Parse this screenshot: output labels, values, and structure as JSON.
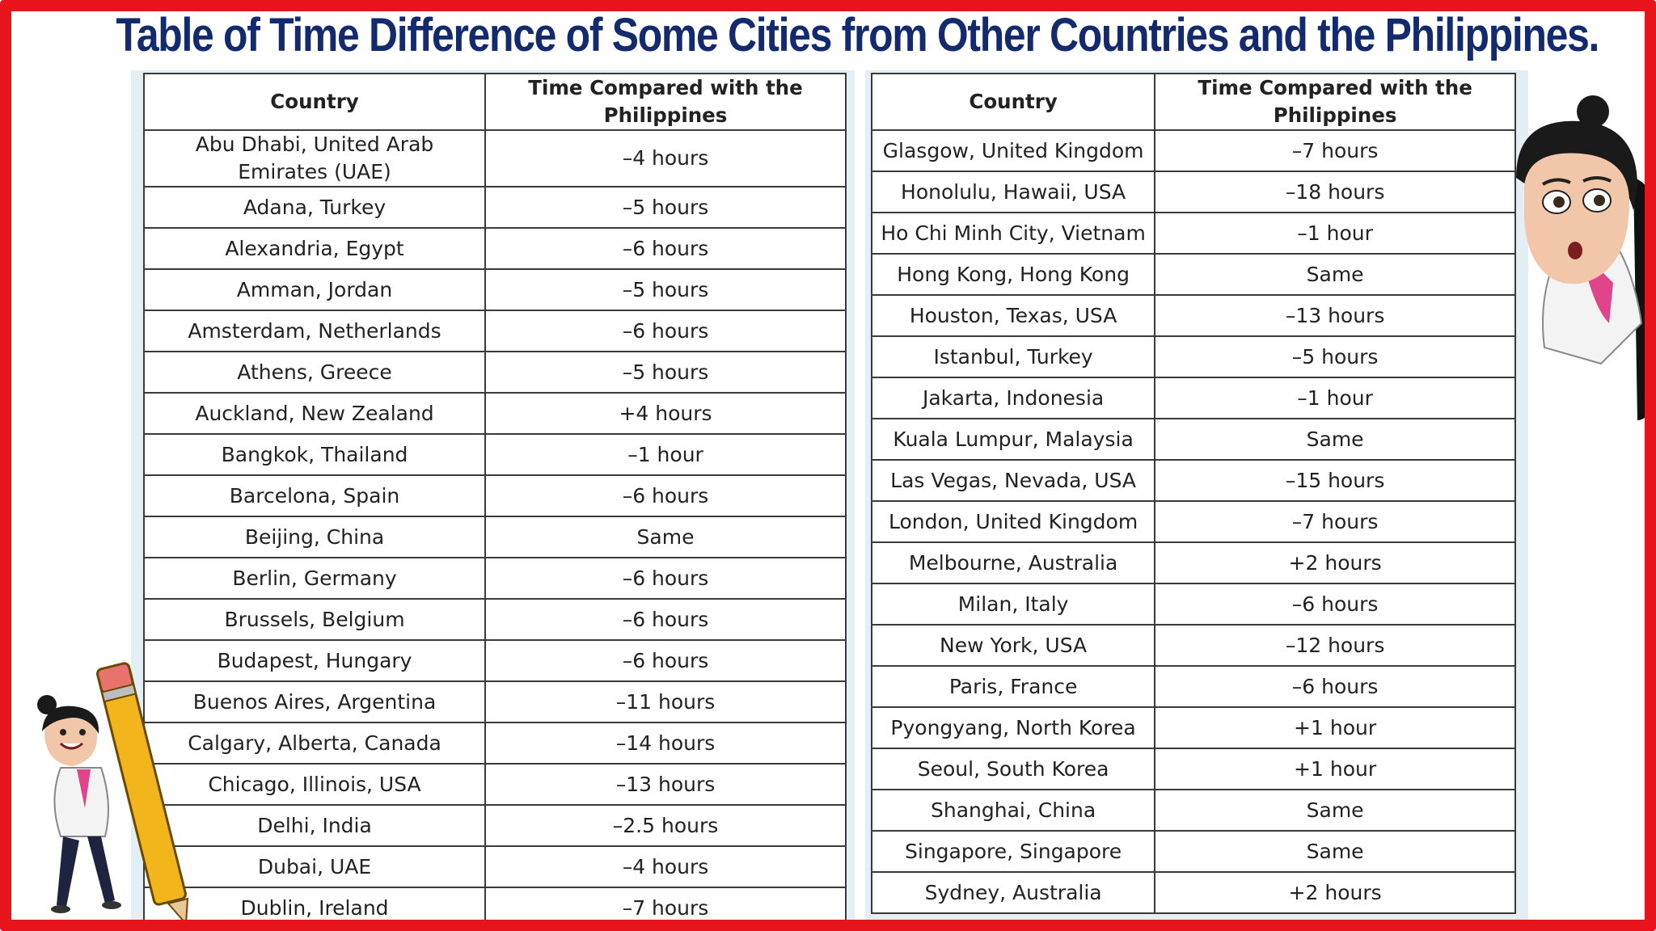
{
  "title": "Table of Time Difference of Some Cities from Other Countries  and the Philippines.",
  "headers": {
    "country": "Country",
    "time": "Time Compared with the Philippines"
  },
  "left_rows": [
    {
      "country": "Abu Dhabi, United Arab Emirates (UAE)",
      "time": "–4 hours"
    },
    {
      "country": "Adana, Turkey",
      "time": "–5 hours"
    },
    {
      "country": "Alexandria, Egypt",
      "time": "–6 hours"
    },
    {
      "country": "Amman, Jordan",
      "time": "–5 hours"
    },
    {
      "country": "Amsterdam, Netherlands",
      "time": "–6 hours"
    },
    {
      "country": "Athens, Greece",
      "time": "–5 hours"
    },
    {
      "country": "Auckland, New Zealand",
      "time": "+4 hours"
    },
    {
      "country": "Bangkok, Thailand",
      "time": "–1 hour"
    },
    {
      "country": "Barcelona, Spain",
      "time": "–6 hours"
    },
    {
      "country": "Beijing, China",
      "time": "Same"
    },
    {
      "country": "Berlin, Germany",
      "time": "–6 hours"
    },
    {
      "country": "Brussels, Belgium",
      "time": "–6 hours"
    },
    {
      "country": "Budapest, Hungary",
      "time": "–6 hours"
    },
    {
      "country": "Buenos Aires, Argentina",
      "time": "–11 hours"
    },
    {
      "country": "Calgary, Alberta, Canada",
      "time": "–14 hours"
    },
    {
      "country": "Chicago, Illinois, USA",
      "time": "–13 hours"
    },
    {
      "country": "Delhi, India",
      "time": "–2.5 hours"
    },
    {
      "country": "Dubai, UAE",
      "time": "–4 hours"
    },
    {
      "country": "Dublin, Ireland",
      "time": "–7 hours"
    }
  ],
  "right_rows": [
    {
      "country": "Glasgow, United Kingdom",
      "time": "–7 hours"
    },
    {
      "country": "Honolulu, Hawaii, USA",
      "time": "–18 hours"
    },
    {
      "country": "Ho Chi Minh City, Vietnam",
      "time": "–1 hour"
    },
    {
      "country": "Hong Kong, Hong Kong",
      "time": "Same"
    },
    {
      "country": "Houston, Texas, USA",
      "time": "–13 hours"
    },
    {
      "country": "Istanbul, Turkey",
      "time": "–5 hours"
    },
    {
      "country": "Jakarta, Indonesia",
      "time": "–1 hour"
    },
    {
      "country": "Kuala Lumpur, Malaysia",
      "time": "Same"
    },
    {
      "country": "Las Vegas, Nevada, USA",
      "time": "–15 hours"
    },
    {
      "country": "London, United Kingdom",
      "time": "–7 hours"
    },
    {
      "country": "Melbourne, Australia",
      "time": "+2 hours"
    },
    {
      "country": "Milan, Italy",
      "time": "–6 hours"
    },
    {
      "country": "New York, USA",
      "time": "–12 hours"
    },
    {
      "country": "Paris, France",
      "time": "–6 hours"
    },
    {
      "country": "Pyongyang, North Korea",
      "time": "+1 hour"
    },
    {
      "country": "Seoul, South Korea",
      "time": "+1 hour"
    },
    {
      "country": "Shanghai, China",
      "time": "Same"
    },
    {
      "country": "Singapore, Singapore",
      "time": "Same"
    },
    {
      "country": "Sydney, Australia",
      "time": "+2 hours"
    }
  ],
  "colors": {
    "frame": "#e8141c",
    "title": "#142a6e",
    "panel": "#e4eef5",
    "pencil": "#f2b51c"
  },
  "icons": {
    "right_figure": "surprised-girl-peeking-icon",
    "left_figure": "girl-with-pencil-icon"
  }
}
